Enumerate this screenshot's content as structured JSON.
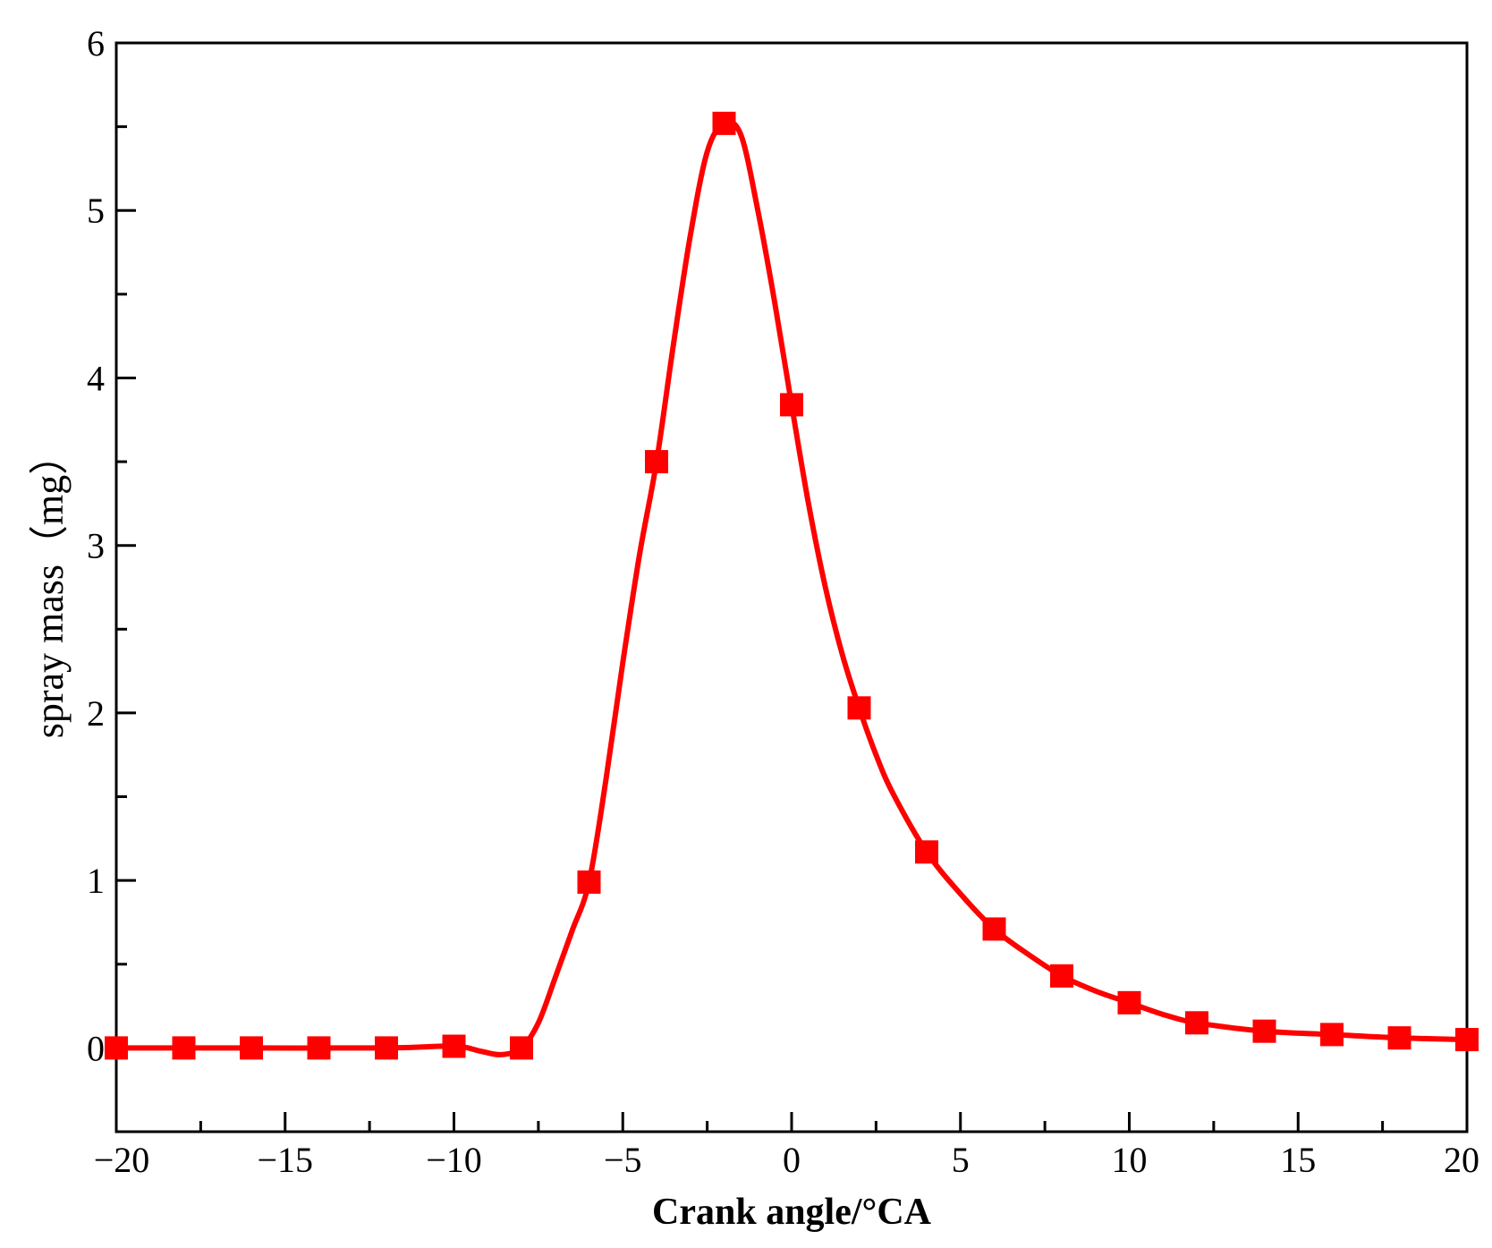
{
  "chart_data": {
    "type": "line",
    "title": "",
    "xlabel": "Crank angle/°CA",
    "ylabel": "spray mass（mg）",
    "xlim": [
      -20,
      20
    ],
    "ylim": [
      -0.5,
      6
    ],
    "xticks": [
      -20,
      -15,
      -10,
      -5,
      0,
      5,
      10,
      15,
      20
    ],
    "xtick_labels": [
      "−20",
      "−15",
      "−10",
      "−5",
      "0",
      "5",
      "10",
      "15",
      "20"
    ],
    "yticks": [
      0,
      1,
      2,
      3,
      4,
      5,
      6
    ],
    "ytick_labels": [
      "0",
      "1",
      "2",
      "3",
      "4",
      "5",
      "6"
    ],
    "grid": false,
    "legend": "none",
    "series": [
      {
        "color": "#ff0000",
        "marker": "square",
        "x": [
          -20,
          -18,
          -16,
          -14,
          -12,
          -10,
          -8,
          -6,
          -4,
          -2,
          0,
          2,
          4,
          6,
          8,
          10,
          12,
          14,
          16,
          18,
          20
        ],
        "y": [
          0,
          0,
          0,
          0,
          0,
          0.01,
          0,
          0.99,
          3.5,
          5.52,
          3.84,
          2.03,
          1.17,
          0.71,
          0.43,
          0.27,
          0.15,
          0.1,
          0.08,
          0.06,
          0.05
        ]
      }
    ],
    "curve": {
      "x": [
        -20,
        -16,
        -12,
        -10,
        -9.2,
        -8.6,
        -8,
        -7.5,
        -7,
        -6.5,
        -6,
        -5.5,
        -5,
        -4.5,
        -4,
        -3.5,
        -3,
        -2.5,
        -2,
        -1.5,
        -1,
        -0.5,
        0,
        0.5,
        1,
        1.5,
        2,
        2.5,
        3,
        4,
        5,
        6,
        7,
        8,
        9,
        10,
        11,
        12,
        14,
        16,
        18,
        20
      ],
      "y": [
        0,
        0,
        0,
        0.01,
        -0.02,
        -0.04,
        0,
        0.15,
        0.42,
        0.7,
        0.99,
        1.6,
        2.3,
        2.95,
        3.5,
        4.2,
        4.85,
        5.35,
        5.52,
        5.45,
        5.0,
        4.45,
        3.84,
        3.25,
        2.75,
        2.35,
        2.03,
        1.75,
        1.52,
        1.17,
        0.92,
        0.71,
        0.56,
        0.43,
        0.34,
        0.27,
        0.2,
        0.15,
        0.1,
        0.08,
        0.06,
        0.05
      ]
    }
  }
}
